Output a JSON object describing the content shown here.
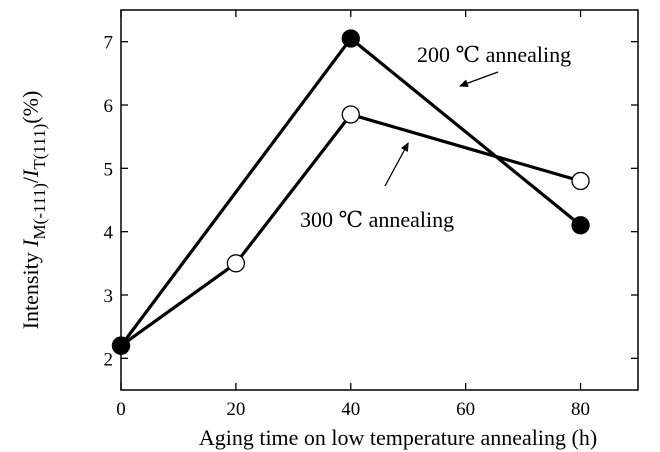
{
  "chart_data": {
    "type": "line",
    "xlabel": "Aging time on low temperature annealing  (h)",
    "ylabel": {
      "prefix": "Intensity ",
      "num_italic": "I",
      "num_sub": "M(-111)",
      "slash": "/",
      "den_italic": "I",
      "den_sub": "T(111)",
      "suffix": "(%)"
    },
    "xlim": [
      0,
      90
    ],
    "ylim": [
      1.5,
      7.5
    ],
    "xticks": [
      0,
      20,
      40,
      60,
      80
    ],
    "yticks": [
      2,
      3,
      4,
      5,
      6,
      7
    ],
    "series": [
      {
        "name": "200 ℃ annealing",
        "marker": "filled-circle",
        "x": [
          0,
          40,
          80
        ],
        "y": [
          2.2,
          7.05,
          4.1
        ]
      },
      {
        "name": "300 ℃ annealing",
        "marker": "open-circle",
        "x": [
          0,
          20,
          40,
          80
        ],
        "y": [
          2.2,
          3.5,
          5.85,
          4.8
        ]
      }
    ],
    "annotations": [
      {
        "text": "200 ℃ annealing",
        "series": 0,
        "pointer_x": 59,
        "pointer_y": 6.3
      },
      {
        "text": "300 ℃ annealing",
        "series": 1,
        "pointer_x": 50,
        "pointer_y": 5.4
      }
    ],
    "grid": false
  }
}
